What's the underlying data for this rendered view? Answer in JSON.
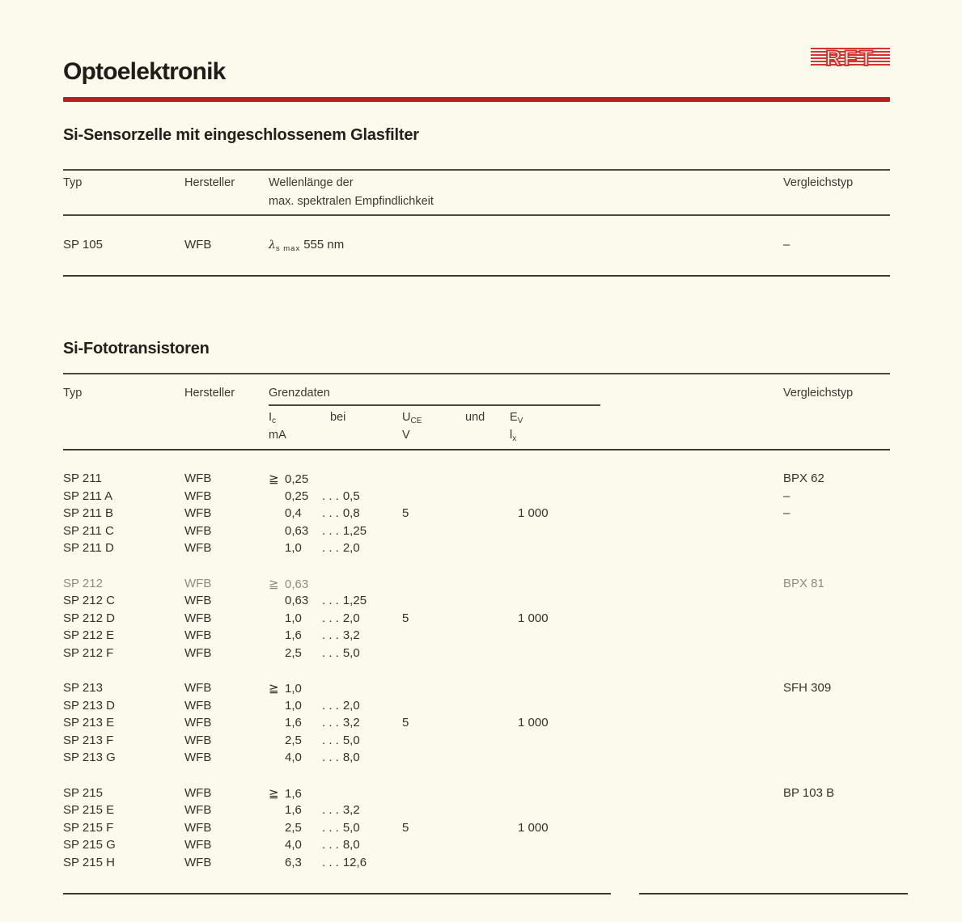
{
  "colors": {
    "background": "#fbfaec",
    "ink": "#302f28",
    "accent_red": "#b2231f",
    "logo_red": "#d53331"
  },
  "header": {
    "title": "Optoelektronik",
    "logo_text": "RFT"
  },
  "section1": {
    "heading": "Si-Sensorzelle mit eingeschlossenem Glasfilter",
    "columns": {
      "typ": "Typ",
      "hersteller": "Hersteller",
      "wellenlaenge_line1": "Wellenlänge der",
      "wellenlaenge_line2": "max. spektralen Empfindlichkeit",
      "vergleichstyp": "Vergleichstyp"
    },
    "row": {
      "typ": "SP 105",
      "hersteller": "WFB",
      "lambda_symbol": "λ",
      "lambda_sub": "s max",
      "wellenlaenge_wert": "555 nm",
      "vergleichstyp": "–"
    }
  },
  "section2": {
    "heading": "Si-Fototransistoren",
    "columns": {
      "typ": "Typ",
      "hersteller": "Hersteller",
      "grenzdaten": "Grenzdaten",
      "vergleichstyp": "Vergleichstyp"
    },
    "subcolumns": {
      "ic_main": "I",
      "ic_sub": "c",
      "bei": "bei",
      "uce_main": "U",
      "uce_sub": "CE",
      "und": "und",
      "ev_main": "E",
      "ev_sub": "V",
      "ic_unit": "mA",
      "uce_unit": "V",
      "ev_unit_main": "l",
      "ev_unit_sub": "x"
    },
    "dots": ". . .",
    "groups": [
      [
        {
          "typ": "SP 211",
          "hersteller": "WFB",
          "ic_prefix": "≧",
          "ic_min": "0,25",
          "ic_max": "",
          "uce": "",
          "ev": "",
          "vergleichstyp": "BPX 62",
          "faded": false
        },
        {
          "typ": "SP 211 A",
          "hersteller": "WFB",
          "ic_prefix": "",
          "ic_min": "0,25",
          "ic_max": "0,5",
          "uce": "",
          "ev": "",
          "vergleichstyp": "–",
          "faded": false
        },
        {
          "typ": "SP 211 B",
          "hersteller": "WFB",
          "ic_prefix": "",
          "ic_min": "0,4",
          "ic_max": "0,8",
          "uce": "5",
          "ev": "1 000",
          "vergleichstyp": "–",
          "faded": false
        },
        {
          "typ": "SP 211 C",
          "hersteller": "WFB",
          "ic_prefix": "",
          "ic_min": "0,63",
          "ic_max": "1,25",
          "uce": "",
          "ev": "",
          "vergleichstyp": "",
          "faded": false
        },
        {
          "typ": "SP 211 D",
          "hersteller": "WFB",
          "ic_prefix": "",
          "ic_min": "1,0",
          "ic_max": "2,0",
          "uce": "",
          "ev": "",
          "vergleichstyp": "",
          "faded": false
        }
      ],
      [
        {
          "typ": "SP 212",
          "hersteller": "WFB",
          "ic_prefix": "≧",
          "ic_min": "0,63",
          "ic_max": "",
          "uce": "",
          "ev": "",
          "vergleichstyp": "BPX 81",
          "faded": true
        },
        {
          "typ": "SP 212 C",
          "hersteller": "WFB",
          "ic_prefix": "",
          "ic_min": "0,63",
          "ic_max": "1,25",
          "uce": "",
          "ev": "",
          "vergleichstyp": "",
          "faded": false
        },
        {
          "typ": "SP 212 D",
          "hersteller": "WFB",
          "ic_prefix": "",
          "ic_min": "1,0",
          "ic_max": "2,0",
          "uce": "5",
          "ev": "1 000",
          "vergleichstyp": "",
          "faded": false
        },
        {
          "typ": "SP 212 E",
          "hersteller": "WFB",
          "ic_prefix": "",
          "ic_min": "1,6",
          "ic_max": "3,2",
          "uce": "",
          "ev": "",
          "vergleichstyp": "",
          "faded": false
        },
        {
          "typ": "SP 212 F",
          "hersteller": "WFB",
          "ic_prefix": "",
          "ic_min": "2,5",
          "ic_max": "5,0",
          "uce": "",
          "ev": "",
          "vergleichstyp": "",
          "faded": false
        }
      ],
      [
        {
          "typ": "SP 213",
          "hersteller": "WFB",
          "ic_prefix": "≧",
          "ic_min": "1,0",
          "ic_max": "",
          "uce": "",
          "ev": "",
          "vergleichstyp": "SFH 309",
          "faded": false
        },
        {
          "typ": "SP 213 D",
          "hersteller": "WFB",
          "ic_prefix": "",
          "ic_min": "1,0",
          "ic_max": "2,0",
          "uce": "",
          "ev": "",
          "vergleichstyp": "",
          "faded": false
        },
        {
          "typ": "SP 213 E",
          "hersteller": "WFB",
          "ic_prefix": "",
          "ic_min": "1,6",
          "ic_max": "3,2",
          "uce": "5",
          "ev": "1 000",
          "vergleichstyp": "",
          "faded": false
        },
        {
          "typ": "SP 213 F",
          "hersteller": "WFB",
          "ic_prefix": "",
          "ic_min": "2,5",
          "ic_max": "5,0",
          "uce": "",
          "ev": "",
          "vergleichstyp": "",
          "faded": false
        },
        {
          "typ": "SP 213 G",
          "hersteller": "WFB",
          "ic_prefix": "",
          "ic_min": "4,0",
          "ic_max": "8,0",
          "uce": "",
          "ev": "",
          "vergleichstyp": "",
          "faded": false
        }
      ],
      [
        {
          "typ": "SP 215",
          "hersteller": "WFB",
          "ic_prefix": "≧",
          "ic_min": "1,6",
          "ic_max": "",
          "uce": "",
          "ev": "",
          "vergleichstyp": "BP 103 B",
          "faded": false
        },
        {
          "typ": "SP 215 E",
          "hersteller": "WFB",
          "ic_prefix": "",
          "ic_min": "1,6",
          "ic_max": "3,2",
          "uce": "",
          "ev": "",
          "vergleichstyp": "",
          "faded": false
        },
        {
          "typ": "SP 215 F",
          "hersteller": "WFB",
          "ic_prefix": "",
          "ic_min": "2,5",
          "ic_max": "5,0",
          "uce": "5",
          "ev": "1 000",
          "vergleichstyp": "",
          "faded": false
        },
        {
          "typ": "SP 215 G",
          "hersteller": "WFB",
          "ic_prefix": "",
          "ic_min": "4,0",
          "ic_max": "8,0",
          "uce": "",
          "ev": "",
          "vergleichstyp": "",
          "faded": false
        },
        {
          "typ": "SP 215 H",
          "hersteller": "WFB",
          "ic_prefix": "",
          "ic_min": "6,3",
          "ic_max": "12,6",
          "uce": "",
          "ev": "",
          "vergleichstyp": "",
          "faded": false
        }
      ]
    ]
  }
}
